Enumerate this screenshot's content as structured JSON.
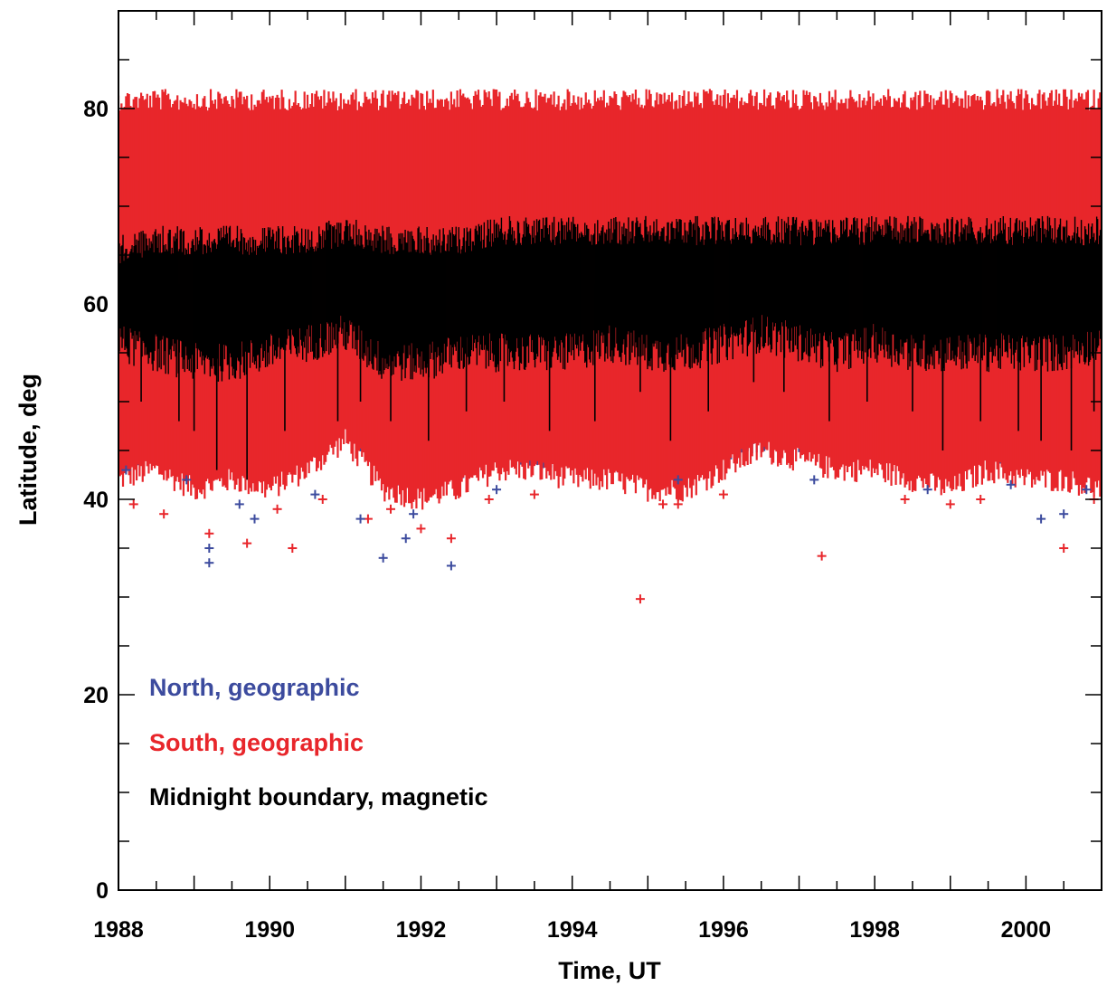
{
  "chart_data": {
    "type": "scatter",
    "xlabel": "Time, UT",
    "ylabel": "Latitude, deg",
    "xlim": [
      1988,
      2001
    ],
    "ylim": [
      0,
      90
    ],
    "x_ticks": [
      1988,
      1990,
      1992,
      1994,
      1996,
      1998,
      2000
    ],
    "y_ticks": [
      0,
      20,
      40,
      60,
      80
    ],
    "grid": false,
    "legend_position": "bottom-left",
    "series": [
      {
        "name": "North, geographic",
        "color": "#3c4b9e",
        "marker": "plus",
        "band_x": [
          1988.0,
          1988.5,
          1989.0,
          1989.5,
          1990.0,
          1990.5,
          1991.0,
          1991.5,
          1992.0,
          1992.5,
          1993.0,
          1993.5,
          1994.0,
          1994.5,
          1995.0,
          1995.5,
          1996.0,
          1996.5,
          1997.0,
          1997.5,
          1998.0,
          1998.5,
          1999.0,
          1999.5,
          2000.0,
          2000.5,
          2001.0
        ],
        "band_low": [
          44,
          45,
          43,
          44,
          44,
          45,
          48,
          43,
          42,
          43,
          45,
          44,
          45,
          44,
          44,
          44,
          45,
          46,
          46,
          45,
          45,
          44,
          44,
          45,
          44,
          45,
          45
        ],
        "band_high": [
          76,
          77,
          78,
          77,
          77,
          77,
          78,
          76,
          78,
          78,
          78,
          78,
          78,
          78,
          78,
          78,
          78,
          78,
          78,
          78,
          77,
          78,
          78,
          78,
          76,
          77,
          77
        ],
        "outliers": [
          [
            1988.1,
            43
          ],
          [
            1988.9,
            42
          ],
          [
            1989.2,
            33.5
          ],
          [
            1989.2,
            35
          ],
          [
            1989.6,
            39.5
          ],
          [
            1989.8,
            38
          ],
          [
            1990.6,
            40.5
          ],
          [
            1991.2,
            38
          ],
          [
            1991.5,
            34
          ],
          [
            1991.8,
            36
          ],
          [
            1991.9,
            38.5
          ],
          [
            1992.4,
            33.2
          ],
          [
            1993.0,
            41
          ],
          [
            1995.4,
            42
          ],
          [
            1997.2,
            42
          ],
          [
            1998.7,
            41
          ],
          [
            1999.8,
            41.5
          ],
          [
            2000.2,
            38
          ],
          [
            2000.5,
            38.5
          ],
          [
            2000.8,
            41
          ]
        ]
      },
      {
        "name": "South, geographic",
        "color": "#e8262b",
        "marker": "plus",
        "band_x": [
          1988.0,
          1988.5,
          1989.0,
          1989.5,
          1990.0,
          1990.5,
          1991.0,
          1991.5,
          1992.0,
          1992.5,
          1993.0,
          1993.5,
          1994.0,
          1994.5,
          1995.0,
          1995.5,
          1996.0,
          1996.5,
          1997.0,
          1997.5,
          1998.0,
          1998.5,
          1999.0,
          1999.5,
          2000.0,
          2000.5,
          2001.0
        ],
        "band_low": [
          42,
          43,
          41,
          42,
          41,
          43,
          46,
          41,
          40,
          41,
          43,
          43,
          42,
          42,
          41,
          41,
          43,
          45,
          44,
          43,
          43,
          42,
          41,
          43,
          42,
          42,
          41
        ],
        "band_high": [
          82,
          82,
          82,
          82,
          82,
          82,
          82,
          82,
          82,
          82,
          82,
          82,
          82,
          82,
          82,
          82,
          82,
          82,
          82,
          82,
          82,
          82,
          82,
          82,
          82,
          82,
          82
        ],
        "outliers": [
          [
            1988.2,
            39.5
          ],
          [
            1988.6,
            38.5
          ],
          [
            1989.2,
            36.5
          ],
          [
            1989.7,
            35.5
          ],
          [
            1990.1,
            39
          ],
          [
            1990.3,
            35
          ],
          [
            1990.7,
            40
          ],
          [
            1991.3,
            38
          ],
          [
            1991.6,
            39
          ],
          [
            1992.0,
            37
          ],
          [
            1992.4,
            36
          ],
          [
            1992.9,
            40
          ],
          [
            1993.5,
            40.5
          ],
          [
            1994.9,
            29.8
          ],
          [
            1995.2,
            39.5
          ],
          [
            1995.4,
            39.5
          ],
          [
            1996.0,
            40.5
          ],
          [
            1997.3,
            34.2
          ],
          [
            1998.4,
            40
          ],
          [
            1999.0,
            39.5
          ],
          [
            1999.4,
            40
          ],
          [
            2000.5,
            35
          ],
          [
            2000.9,
            40
          ]
        ]
      },
      {
        "name": "Midnight boundary, magnetic",
        "color": "#000000",
        "marker": "line",
        "band_x": [
          1988.0,
          1988.5,
          1989.0,
          1989.5,
          1990.0,
          1990.5,
          1991.0,
          1991.5,
          1992.0,
          1992.5,
          1993.0,
          1993.5,
          1994.0,
          1994.5,
          1995.0,
          1995.5,
          1996.0,
          1996.5,
          1997.0,
          1997.5,
          1998.0,
          1998.5,
          1999.0,
          1999.5,
          2000.0,
          2000.5,
          2001.0
        ],
        "band_low": [
          56,
          55,
          54,
          54,
          55,
          56,
          57,
          54,
          54,
          55,
          55,
          55,
          55,
          56,
          55,
          55,
          56,
          57,
          56,
          55,
          56,
          55,
          55,
          55,
          55,
          55,
          56
        ],
        "band_high": [
          67,
          68,
          68,
          68,
          68,
          68,
          69,
          68,
          68,
          68,
          69,
          69,
          69,
          69,
          69,
          69,
          69,
          69,
          69,
          69,
          69,
          69,
          69,
          69,
          69,
          69,
          69
        ],
        "spikes": [
          [
            1988.3,
            50
          ],
          [
            1988.8,
            48
          ],
          [
            1989.0,
            47
          ],
          [
            1989.3,
            43
          ],
          [
            1989.7,
            42
          ],
          [
            1990.2,
            47
          ],
          [
            1990.9,
            48
          ],
          [
            1991.2,
            50
          ],
          [
            1991.6,
            48
          ],
          [
            1992.1,
            46
          ],
          [
            1992.6,
            49
          ],
          [
            1993.1,
            50
          ],
          [
            1993.7,
            47
          ],
          [
            1994.3,
            48
          ],
          [
            1994.9,
            51
          ],
          [
            1995.3,
            46
          ],
          [
            1995.8,
            49
          ],
          [
            1996.4,
            52
          ],
          [
            1996.8,
            51
          ],
          [
            1997.4,
            48
          ],
          [
            1997.9,
            50
          ],
          [
            1998.5,
            49
          ],
          [
            1998.9,
            45
          ],
          [
            1999.4,
            48
          ],
          [
            1999.9,
            47
          ],
          [
            2000.2,
            46
          ],
          [
            2000.6,
            45
          ],
          [
            2000.9,
            49
          ]
        ]
      }
    ]
  }
}
